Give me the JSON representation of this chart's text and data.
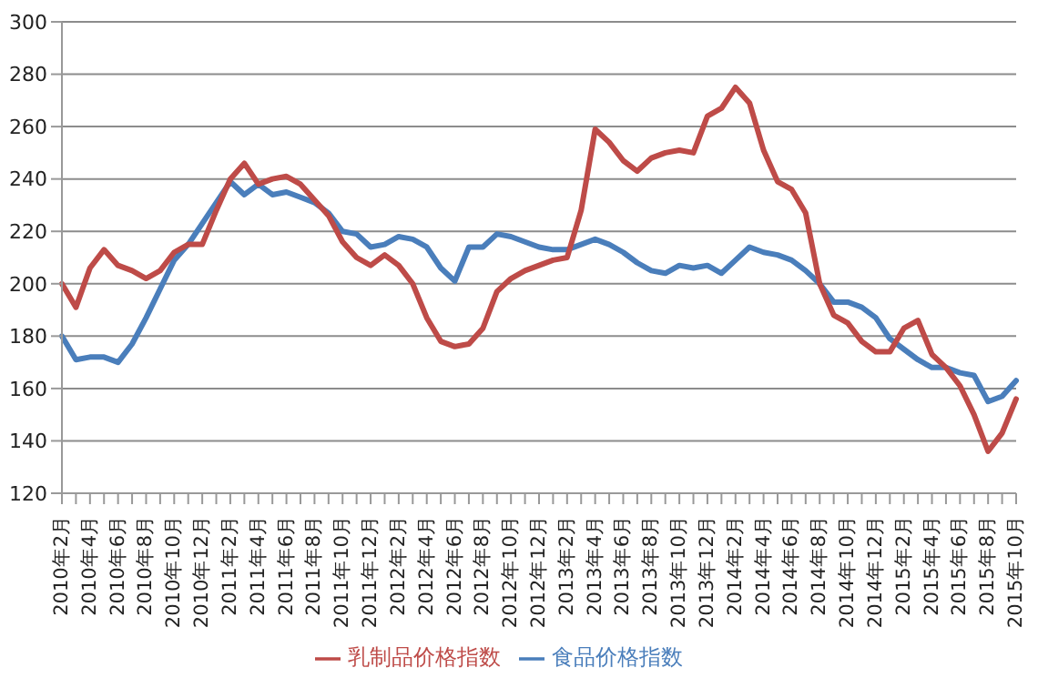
{
  "chart_data": {
    "type": "line",
    "categories": [
      "2010年2月",
      null,
      "2010年4月",
      null,
      "2010年6月",
      null,
      "2010年8月",
      null,
      "2010年10月",
      null,
      "2010年12月",
      null,
      "2011年2月",
      null,
      "2011年4月",
      null,
      "2011年6月",
      null,
      "2011年8月",
      null,
      "2011年10月",
      null,
      "2011年12月",
      null,
      "2012年2月",
      null,
      "2012年4月",
      null,
      "2012年6月",
      null,
      "2012年8月",
      null,
      "2012年10月",
      null,
      "2012年12月",
      null,
      "2013年2月",
      null,
      "2013年4月",
      null,
      "2013年6月",
      null,
      "2013年8月",
      null,
      "2013年10月",
      null,
      "2013年12月",
      null,
      "2014年2月",
      null,
      "2014年4月",
      null,
      "2014年6月",
      null,
      "2014年8月",
      null,
      "2014年10月",
      null,
      "2014年12月",
      null,
      "2015年2月",
      null,
      "2015年4月",
      null,
      "2015年6月",
      null,
      "2015年8月",
      null,
      "2015年10月"
    ],
    "series": [
      {
        "name": "食品价格指数",
        "color": "#4a7ebb",
        "values": [
          180,
          171,
          172,
          172,
          170,
          177,
          187,
          198,
          209,
          215,
          223,
          231,
          239,
          234,
          238,
          234,
          235,
          233,
          231,
          227,
          220,
          219,
          214,
          215,
          218,
          217,
          214,
          206,
          201,
          214,
          214,
          219,
          218,
          216,
          214,
          213,
          213,
          215,
          217,
          215,
          212,
          208,
          205,
          204,
          207,
          206,
          207,
          204,
          209,
          214,
          212,
          211,
          209,
          205,
          200,
          193,
          193,
          191,
          187,
          179,
          175,
          171,
          168,
          168,
          166,
          165,
          155,
          157,
          163
        ]
      },
      {
        "name": "乳制品价格指数",
        "color": "#be4b48",
        "values": [
          200,
          191,
          206,
          213,
          207,
          205,
          202,
          205,
          212,
          215,
          215,
          228,
          240,
          246,
          238,
          240,
          241,
          238,
          232,
          226,
          216,
          210,
          207,
          211,
          207,
          200,
          187,
          178,
          176,
          177,
          183,
          197,
          202,
          205,
          207,
          209,
          210,
          228,
          259,
          254,
          247,
          243,
          248,
          250,
          251,
          250,
          264,
          267,
          275,
          269,
          251,
          239,
          236,
          227,
          200,
          188,
          185,
          178,
          174,
          174,
          183,
          186,
          173,
          168,
          161,
          150,
          136,
          143,
          156
        ]
      }
    ],
    "ylim": [
      120,
      300
    ],
    "yticks": [
      120,
      140,
      160,
      180,
      200,
      220,
      240,
      260,
      280,
      300
    ],
    "grid": "y",
    "legend": "bottom"
  }
}
